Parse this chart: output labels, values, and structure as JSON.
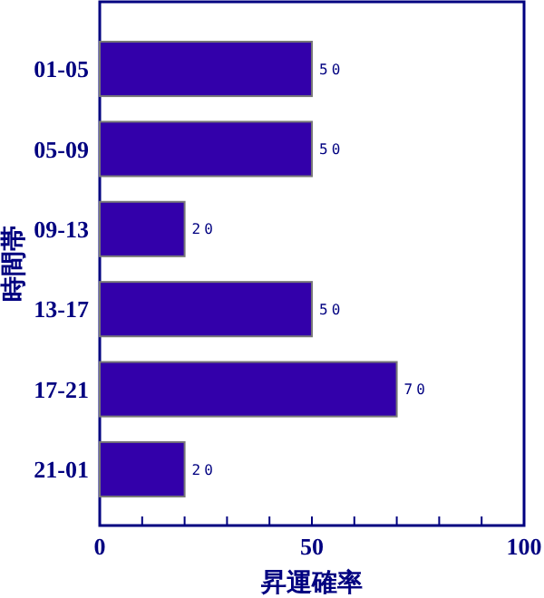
{
  "chart_data": {
    "type": "bar",
    "orientation": "horizontal",
    "categories": [
      "01-05",
      "05-09",
      "09-13",
      "13-17",
      "17-21",
      "21-01"
    ],
    "values": [
      50,
      50,
      20,
      50,
      70,
      20
    ],
    "color": "#3300aa",
    "data_labels": true,
    "xlim": [
      0,
      100
    ],
    "xticks": [
      0,
      {
        "value": 10,
        "label": null
      },
      {
        "value": 20,
        "label": null
      },
      {
        "value": 30,
        "label": null
      },
      {
        "value": 40,
        "label": null
      },
      50,
      {
        "value": 60,
        "label": null
      },
      {
        "value": 70,
        "label": null
      },
      {
        "value": 80,
        "label": null
      },
      {
        "value": 90,
        "label": null
      },
      100
    ],
    "xlabel": "昇運確率",
    "ylabel": "時間帯",
    "grid": false
  }
}
